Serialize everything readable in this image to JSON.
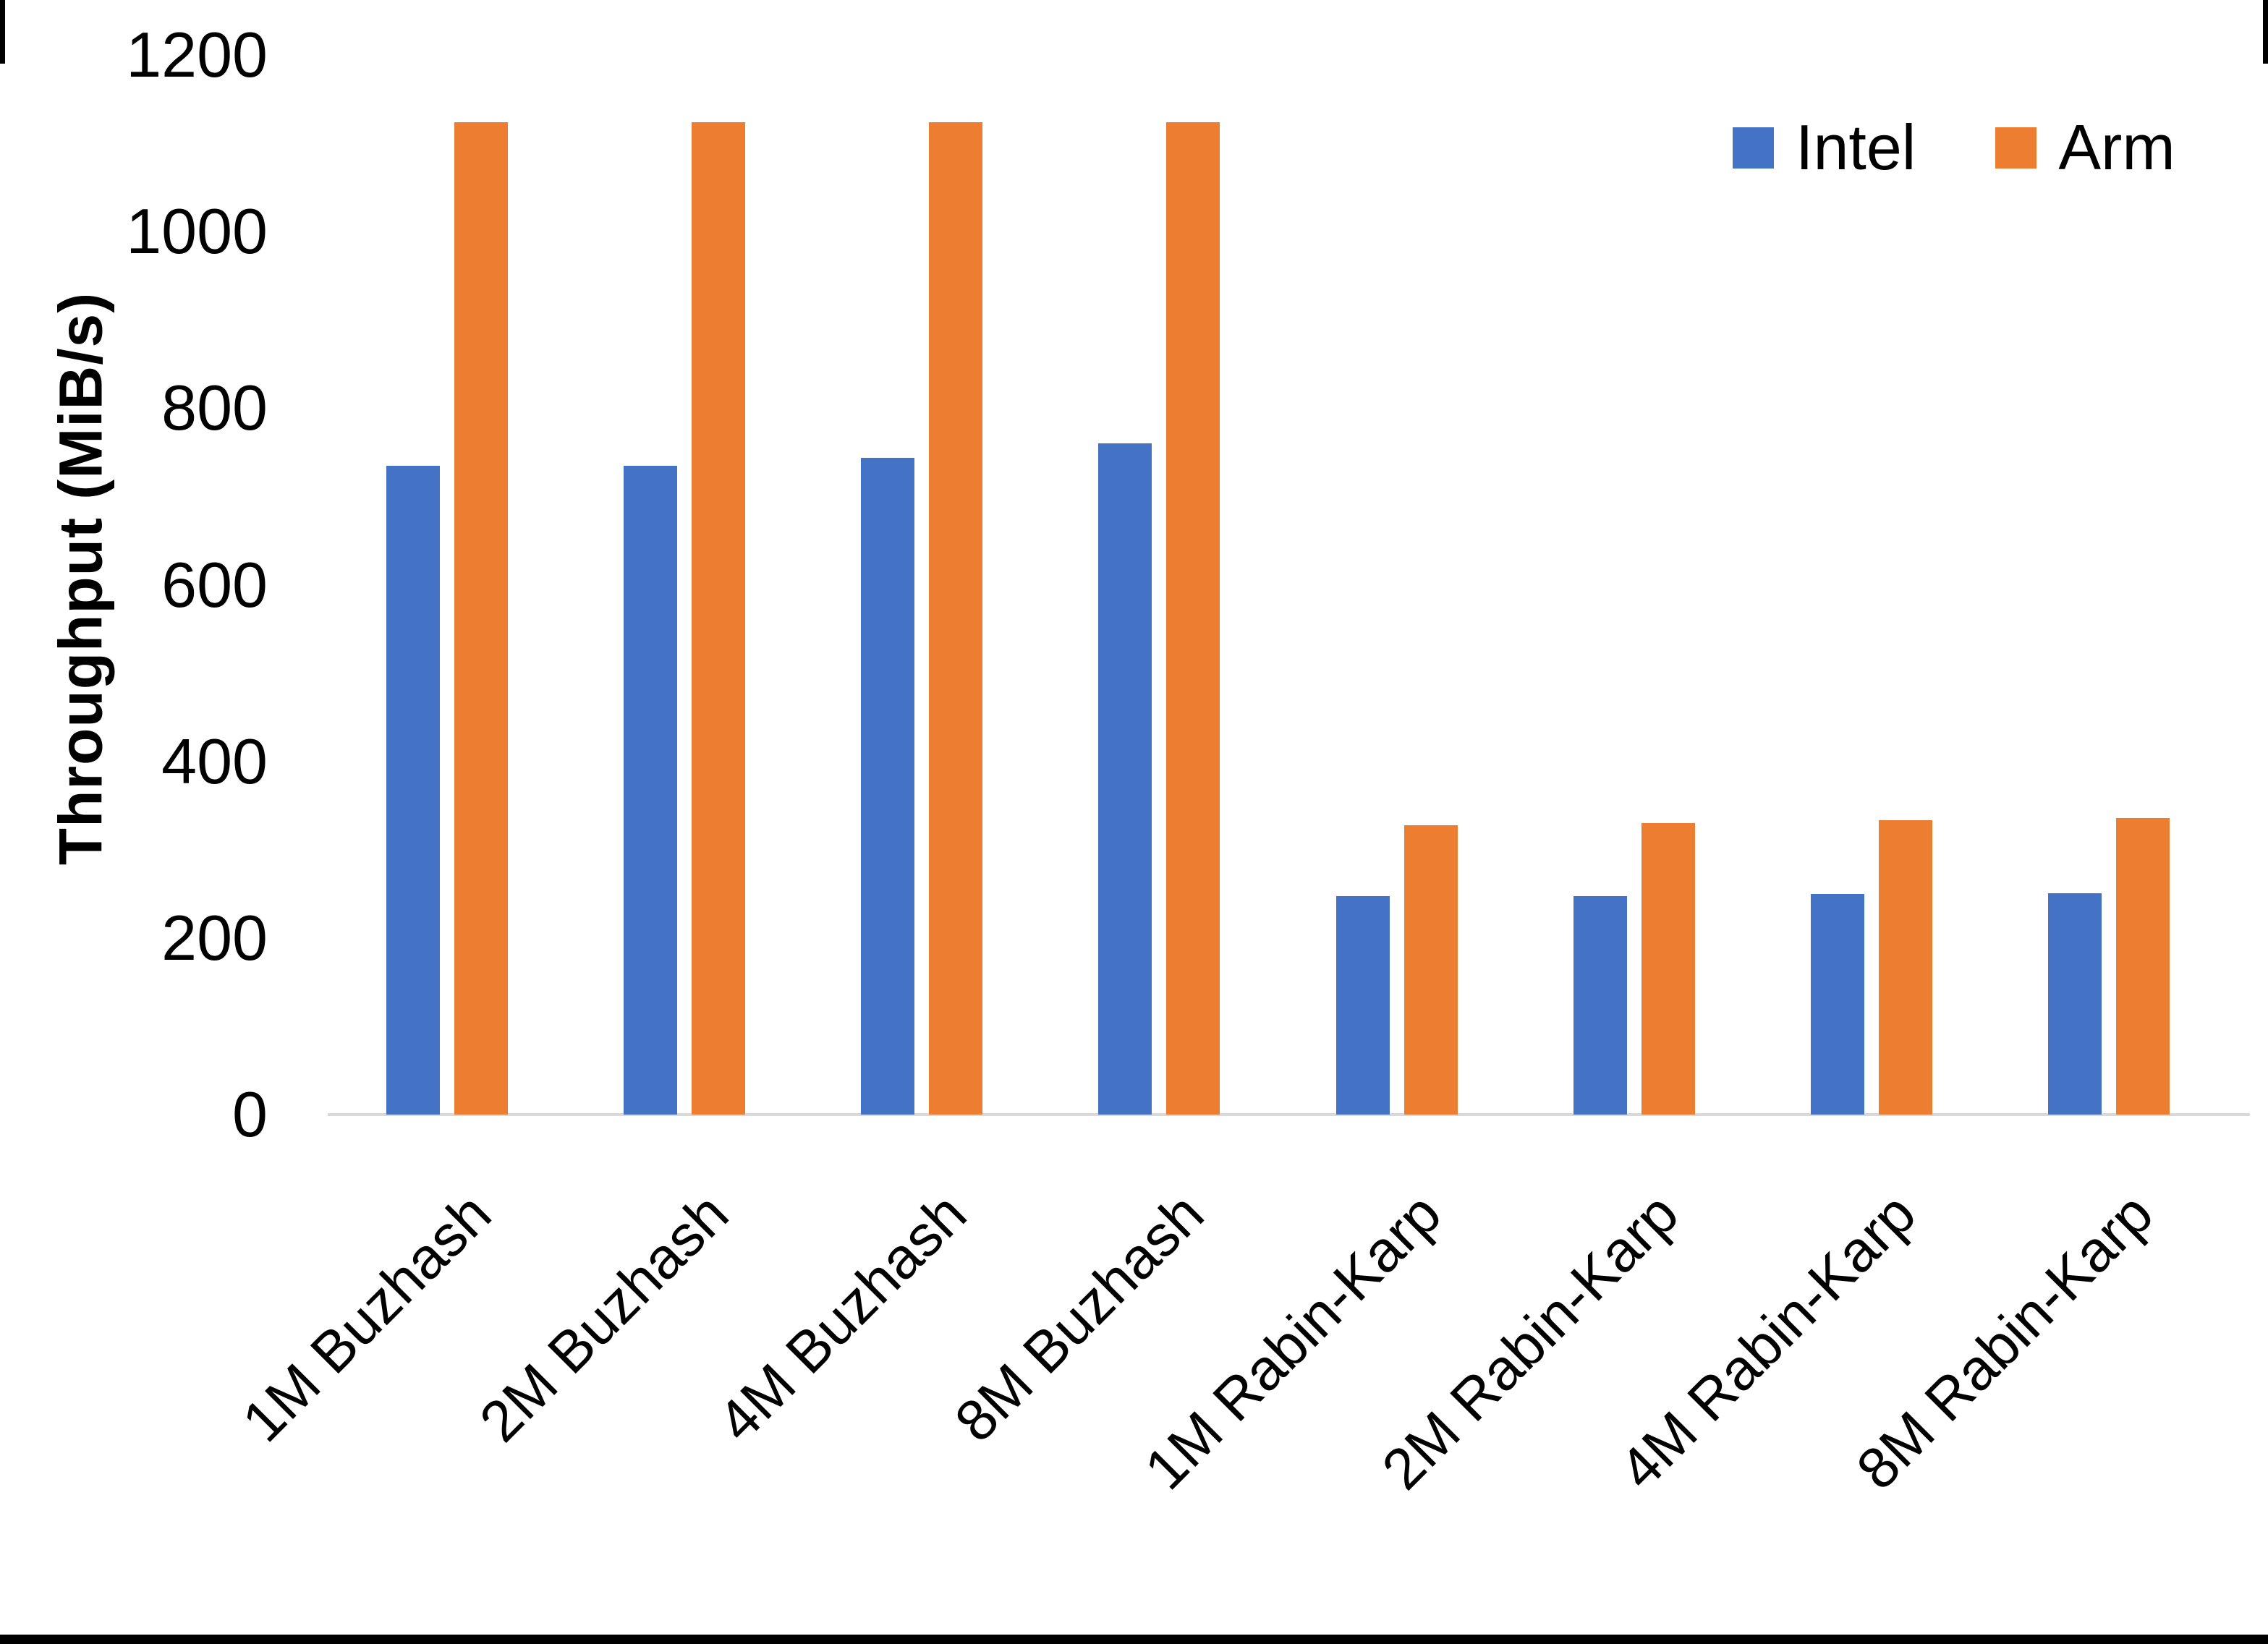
{
  "chart_data": {
    "type": "bar",
    "title": "",
    "xlabel": "",
    "ylabel": "Throughput (MiB/s)",
    "ylim": [
      0,
      1200
    ],
    "yticks": [
      0,
      200,
      400,
      600,
      800,
      1000,
      1200
    ],
    "grid": false,
    "legend_position": "top-right",
    "categories": [
      "1M Buzhash",
      "2M Buzhash",
      "4M Buzhash",
      "8M Buzhash",
      "1M Rabin-Karp",
      "2M Rabin-Karp",
      "4M Rabin-Karp",
      "8M Rabin-Karp"
    ],
    "series": [
      {
        "name": "Intel",
        "color": "#4472C4",
        "values": [
          735,
          735,
          744,
          760,
          247,
          247,
          250,
          251
        ]
      },
      {
        "name": "Arm",
        "color": "#ED7D31",
        "values": [
          1124,
          1124,
          1124,
          1124,
          328,
          330,
          333,
          336
        ]
      }
    ]
  },
  "colors": {
    "axis_line": "#D9D9D9",
    "text": "#000000",
    "background": "#FFFFFF",
    "edge_bars": "#000000"
  }
}
